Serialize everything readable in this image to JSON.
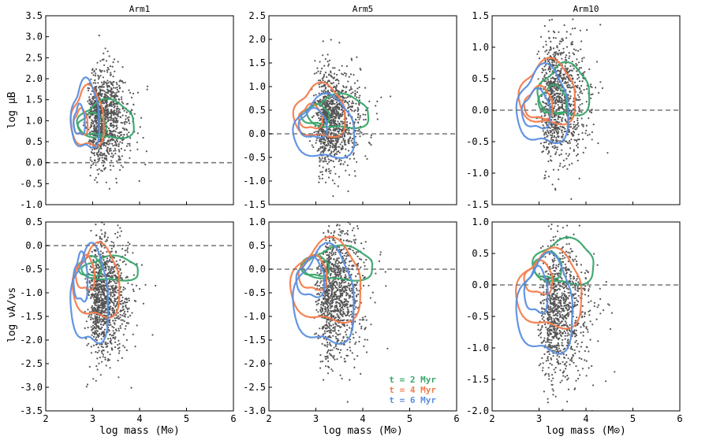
{
  "figure": {
    "xlabel": "log mass (M⊙)",
    "ylabel_top": "log μB",
    "ylabel_bottom": "log νA/νs",
    "columns": [
      "Arm1",
      "Arm5",
      "Arm10"
    ]
  },
  "colors": {
    "points": "#555555",
    "t2": "#3aa76d",
    "t4": "#f47c4c",
    "t6": "#5b8fe0",
    "ref_line": "#777777"
  },
  "legend": [
    "t = 2 Myr",
    "t = 4 Myr",
    "t = 6 Myr"
  ],
  "chart_data": [
    {
      "type": "scatter",
      "title": "Arm1",
      "xlim": [
        2,
        6
      ],
      "ylim": [
        -1.0,
        3.5
      ],
      "yticks": [
        -1.0,
        -0.5,
        0.0,
        0.5,
        1.0,
        1.5,
        2.0,
        2.5,
        3.0,
        3.5
      ],
      "xticks": [
        2,
        3,
        4,
        5,
        6
      ],
      "show_xlabels": false,
      "ref_y": 0.0,
      "cloud": {
        "x_mean": 3.05,
        "x_sd": 0.33,
        "y_mean": 1.05,
        "y_sd": 0.55,
        "corr": 0.0,
        "n": 1100
      },
      "contours": [
        {
          "series": "t = 2 Myr",
          "rings": [
            [
              3.3,
              1.0,
              0.6,
              0.45
            ],
            [
              3.0,
              0.9,
              0.3,
              0.25
            ]
          ]
        },
        {
          "series": "t = 4 Myr",
          "rings": [
            [
              2.9,
              1.05,
              0.35,
              0.7
            ],
            [
              2.75,
              0.95,
              0.15,
              0.3
            ]
          ]
        },
        {
          "series": "t = 6 Myr",
          "rings": [
            [
              2.85,
              1.1,
              0.3,
              0.8
            ],
            [
              2.72,
              1.0,
              0.12,
              0.35
            ]
          ]
        }
      ]
    },
    {
      "type": "scatter",
      "title": "Arm5",
      "xlim": [
        2,
        6
      ],
      "ylim": [
        -1.5,
        2.5
      ],
      "yticks": [
        -1.5,
        -1.0,
        -0.5,
        0.0,
        0.5,
        1.0,
        1.5,
        2.0,
        2.5
      ],
      "xticks": [
        2,
        3,
        4,
        5,
        6
      ],
      "show_xlabels": false,
      "ref_y": 0.0,
      "cloud": {
        "x_mean": 3.15,
        "x_sd": 0.38,
        "y_mean": 0.3,
        "y_sd": 0.5,
        "corr": 0.0,
        "n": 1100
      },
      "contours": [
        {
          "series": "t = 2 Myr",
          "rings": [
            [
              3.5,
              0.45,
              0.65,
              0.35
            ],
            [
              3.0,
              0.4,
              0.3,
              0.2
            ]
          ]
        },
        {
          "series": "t = 4 Myr",
          "rings": [
            [
              3.1,
              0.45,
              0.55,
              0.55
            ],
            [
              2.9,
              0.35,
              0.25,
              0.25
            ]
          ]
        },
        {
          "series": "t = 6 Myr",
          "rings": [
            [
              3.2,
              0.1,
              0.65,
              0.65
            ],
            [
              2.95,
              0.2,
              0.3,
              0.3
            ]
          ]
        }
      ]
    },
    {
      "type": "scatter",
      "title": "Arm10",
      "xlim": [
        2,
        6
      ],
      "ylim": [
        -1.5,
        1.5
      ],
      "yticks": [
        -1.5,
        -1.0,
        -0.5,
        0.0,
        0.5,
        1.0,
        1.5
      ],
      "xticks": [
        2,
        3,
        4,
        5,
        6
      ],
      "show_xlabels": false,
      "ref_y": 0.0,
      "cloud": {
        "x_mean": 3.2,
        "x_sd": 0.38,
        "y_mean": 0.15,
        "y_sd": 0.5,
        "corr": 0.0,
        "n": 1000
      },
      "contours": [
        {
          "series": "t = 2 Myr",
          "rings": [
            [
              3.55,
              0.3,
              0.55,
              0.4
            ],
            [
              3.3,
              0.15,
              0.3,
              0.22
            ]
          ]
        },
        {
          "series": "t = 4 Myr",
          "rings": [
            [
              3.2,
              0.25,
              0.6,
              0.5
            ],
            [
              3.0,
              0.1,
              0.3,
              0.25
            ]
          ]
        },
        {
          "series": "t = 6 Myr",
          "rings": [
            [
              3.1,
              0.05,
              0.55,
              0.6
            ],
            [
              2.95,
              0.0,
              0.3,
              0.3
            ]
          ]
        }
      ]
    },
    {
      "type": "scatter",
      "title": "",
      "xlim": [
        2,
        6
      ],
      "ylim": [
        -3.5,
        0.5
      ],
      "yticks": [
        -3.5,
        -3.0,
        -2.5,
        -2.0,
        -1.5,
        -1.0,
        -0.5,
        0.0,
        0.5
      ],
      "xticks": [
        2,
        3,
        4,
        5,
        6
      ],
      "show_xlabels": true,
      "ref_y": 0.0,
      "cloud": {
        "x_mean": 3.05,
        "x_sd": 0.35,
        "y_mean": -1.1,
        "y_sd": 0.6,
        "corr": 0.0,
        "n": 1100
      },
      "contours": [
        {
          "series": "t = 2 Myr",
          "rings": [
            [
              3.4,
              -0.5,
              0.6,
              0.25
            ],
            [
              2.95,
              -0.45,
              0.25,
              0.2
            ]
          ]
        },
        {
          "series": "t = 4 Myr",
          "rings": [
            [
              3.1,
              -0.8,
              0.5,
              0.75
            ],
            [
              2.85,
              -0.6,
              0.2,
              0.35
            ]
          ]
        },
        {
          "series": "t = 6 Myr",
          "rings": [
            [
              2.95,
              -1.1,
              0.4,
              1.0
            ],
            [
              2.75,
              -0.7,
              0.15,
              0.5
            ]
          ]
        }
      ]
    },
    {
      "type": "scatter",
      "title": "",
      "xlim": [
        2,
        6
      ],
      "ylim": [
        -3.0,
        1.0
      ],
      "yticks": [
        -3.0,
        -2.5,
        -2.0,
        -1.5,
        -1.0,
        -0.5,
        0.0,
        0.5,
        1.0
      ],
      "xticks": [
        2,
        3,
        4,
        5,
        6
      ],
      "show_xlabels": true,
      "ref_y": 0.0,
      "cloud": {
        "x_mean": 3.2,
        "x_sd": 0.38,
        "y_mean": -0.5,
        "y_sd": 0.65,
        "corr": 0.0,
        "n": 1100
      },
      "contours": [
        {
          "series": "t = 2 Myr",
          "rings": [
            [
              3.5,
              0.1,
              0.75,
              0.35
            ],
            [
              3.0,
              0.05,
              0.3,
              0.2
            ]
          ]
        },
        {
          "series": "t = 4 Myr",
          "rings": [
            [
              3.25,
              -0.3,
              0.75,
              0.85
            ],
            [
              2.95,
              -0.1,
              0.3,
              0.35
            ]
          ]
        },
        {
          "series": "t = 6 Myr",
          "rings": [
            [
              3.2,
              -0.6,
              0.65,
              1.0
            ],
            [
              2.9,
              -0.2,
              0.3,
              0.4
            ]
          ]
        }
      ]
    },
    {
      "type": "scatter",
      "title": "",
      "xlim": [
        2,
        6
      ],
      "ylim": [
        -2.0,
        1.0
      ],
      "yticks": [
        -2.0,
        -1.5,
        -1.0,
        -0.5,
        0.0,
        0.5,
        1.0
      ],
      "xticks": [
        2,
        3,
        4,
        5,
        6
      ],
      "show_xlabels": true,
      "ref_y": 0.0,
      "cloud": {
        "x_mean": 3.2,
        "x_sd": 0.4,
        "y_mean": -0.4,
        "y_sd": 0.55,
        "corr": 0.0,
        "n": 1000
      },
      "contours": [
        {
          "series": "t = 2 Myr",
          "rings": [
            [
              3.55,
              0.35,
              0.65,
              0.35
            ],
            [
              3.2,
              0.3,
              0.3,
              0.2
            ]
          ]
        },
        {
          "series": "t = 4 Myr",
          "rings": [
            [
              3.25,
              -0.1,
              0.7,
              0.6
            ],
            [
              3.0,
              0.1,
              0.3,
              0.25
            ]
          ]
        },
        {
          "series": "t = 6 Myr",
          "rings": [
            [
              3.15,
              -0.35,
              0.6,
              0.75
            ],
            [
              2.95,
              -0.1,
              0.25,
              0.35
            ]
          ]
        }
      ]
    }
  ]
}
